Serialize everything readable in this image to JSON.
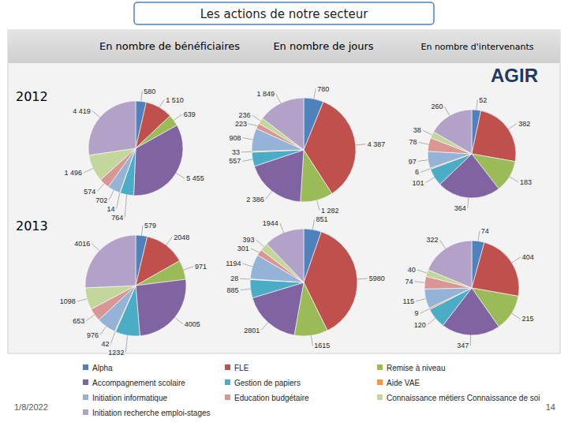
{
  "header": {
    "title": "Les actions de notre secteur",
    "columns": [
      "En nombre de bénéficiaires",
      "En nombre de jours",
      "En nombre d'intervenants"
    ],
    "rows": [
      "2012",
      "2013"
    ],
    "logo": "AGIR"
  },
  "footer": {
    "date": "1/8/2022",
    "page": "14"
  },
  "chart_data": [
    {
      "type": "pie",
      "data_labels": true,
      "legend": "bottom",
      "categories": [
        "Alpha",
        "FLE",
        "Remise à niveau",
        "Accompagnement scolaire",
        "Gestion de papiers",
        "Aide VAE",
        "Initiation informatique",
        "Education budgétaire",
        "Connaissance métiers Connaissance de soi",
        "Initiation recherche emploi-stages"
      ],
      "colors": [
        "#4f81bd",
        "#c0504d",
        "#9bbb59",
        "#8064a2",
        "#4bacc6",
        "#f79646",
        "#95b3d7",
        "#d99694",
        "#c3d69b",
        "#b3a2c7"
      ],
      "values": [
        580,
        1510,
        639,
        5455,
        764,
        14,
        702,
        574,
        1496,
        4419
      ],
      "value_labels": [
        "580",
        "1 510",
        "639",
        "5 455",
        "764",
        "14",
        "702",
        "574",
        "1 496",
        "4 419"
      ]
    },
    {
      "type": "pie",
      "data_labels": true,
      "categories": [
        "Alpha",
        "FLE",
        "Remise à niveau",
        "Accompagnement scolaire",
        "Gestion de papiers",
        "Aide VAE",
        "Initiation informatique",
        "Education budgétaire",
        "Connaissance métiers Connaissance de soi",
        "Initiation recherche emploi-stages"
      ],
      "colors": [
        "#4f81bd",
        "#c0504d",
        "#9bbb59",
        "#8064a2",
        "#4bacc6",
        "#f79646",
        "#95b3d7",
        "#d99694",
        "#c3d69b",
        "#b3a2c7"
      ],
      "values": [
        780,
        4387,
        1282,
        2386,
        557,
        33,
        908,
        223,
        236,
        1849
      ],
      "value_labels": [
        "780",
        "4 387",
        "1 282",
        "2 386",
        "557",
        "33",
        "908",
        "223",
        "236",
        "1 849"
      ]
    },
    {
      "type": "pie",
      "data_labels": true,
      "categories": [
        "Alpha",
        "FLE",
        "Remise à niveau",
        "Accompagnement scolaire",
        "Gestion de papiers",
        "Aide VAE",
        "Initiation informatique",
        "Education budgétaire",
        "Connaissance métiers Connaissance de soi",
        "Initiation recherche emploi-stages"
      ],
      "colors": [
        "#4f81bd",
        "#c0504d",
        "#9bbb59",
        "#8064a2",
        "#4bacc6",
        "#f79646",
        "#95b3d7",
        "#d99694",
        "#c3d69b",
        "#b3a2c7"
      ],
      "values": [
        52,
        382,
        183,
        364,
        101,
        6,
        97,
        78,
        38,
        260
      ]
    },
    {
      "type": "pie",
      "data_labels": true,
      "categories": [
        "Alpha",
        "FLE",
        "Remise à niveau",
        "Accompagnement scolaire",
        "Gestion de papiers",
        "Aide VAE",
        "Initiation informatique",
        "Education budgétaire",
        "Connaissance métiers Connaissance de soi",
        "Initiation recherche emploi-stages"
      ],
      "colors": [
        "#4f81bd",
        "#c0504d",
        "#9bbb59",
        "#8064a2",
        "#4bacc6",
        "#f79646",
        "#95b3d7",
        "#d99694",
        "#c3d69b",
        "#b3a2c7"
      ],
      "values": [
        579,
        2048,
        971,
        4005,
        1232,
        42,
        976,
        653,
        1098,
        4016
      ]
    },
    {
      "type": "pie",
      "data_labels": true,
      "categories": [
        "Alpha",
        "FLE",
        "Remise à niveau",
        "Accompagnement scolaire",
        "Gestion de papiers",
        "Aide VAE",
        "Initiation informatique",
        "Education budgétaire",
        "Connaissance métiers Connaissance de soi",
        "Initiation recherche emploi-stages"
      ],
      "colors": [
        "#4f81bd",
        "#c0504d",
        "#9bbb59",
        "#8064a2",
        "#4bacc6",
        "#f79646",
        "#95b3d7",
        "#d99694",
        "#c3d69b",
        "#b3a2c7"
      ],
      "values": [
        851,
        5980,
        1615,
        2801,
        885,
        28,
        1194,
        301,
        393,
        1944
      ]
    },
    {
      "type": "pie",
      "data_labels": true,
      "categories": [
        "Alpha",
        "FLE",
        "Remise à niveau",
        "Accompagnement scolaire",
        "Gestion de papiers",
        "Aide VAE",
        "Initiation informatique",
        "Education budgétaire",
        "Connaissance métiers Connaissance de soi",
        "Initiation recherche emploi-stages"
      ],
      "colors": [
        "#4f81bd",
        "#c0504d",
        "#9bbb59",
        "#8064a2",
        "#4bacc6",
        "#f79646",
        "#95b3d7",
        "#d99694",
        "#c3d69b",
        "#b3a2c7"
      ],
      "values": [
        74,
        404,
        215,
        347,
        120,
        9,
        115,
        74,
        40,
        322
      ]
    }
  ]
}
